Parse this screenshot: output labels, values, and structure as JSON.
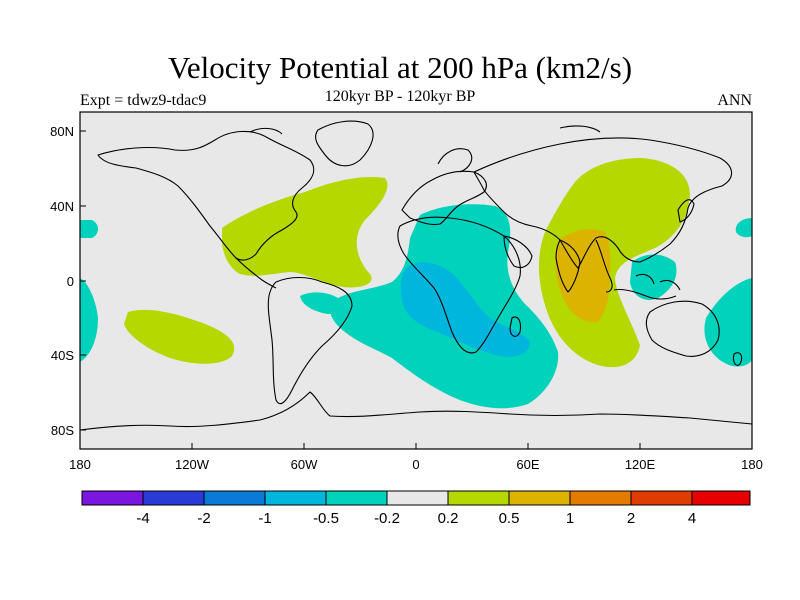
{
  "title": "Velocity Potential at 200 hPa (km2/s)",
  "subtitle_left": "Expt = tdwz9-tdac9",
  "subtitle_center": "120kyr BP - 120kyr BP",
  "subtitle_right": "ANN",
  "axes": {
    "x_ticks": [
      "180",
      "120W",
      "60W",
      "0",
      "60E",
      "120E",
      "180"
    ],
    "y_ticks": [
      "80N",
      "40N",
      "0",
      "40S",
      "80S"
    ]
  },
  "colorbar": {
    "labels": [
      "-4",
      "-2",
      "-1",
      "-0.5",
      "-0.2",
      "0.2",
      "0.5",
      "1",
      "2",
      "4"
    ],
    "colors": [
      "#7a16e0",
      "#2a3ad6",
      "#0a7ad6",
      "#00b6dc",
      "#00d2bc",
      "#e8e8e8",
      "#b4d800",
      "#dcb400",
      "#e47a00",
      "#e03c00",
      "#e60000"
    ]
  },
  "map_colors": {
    "background": "#e8e8e8",
    "level_neg_02": "#00d2bc",
    "level_neg_05": "#00b6dc",
    "level_pos_02": "#b4d800",
    "level_pos_05": "#dcb400"
  }
}
